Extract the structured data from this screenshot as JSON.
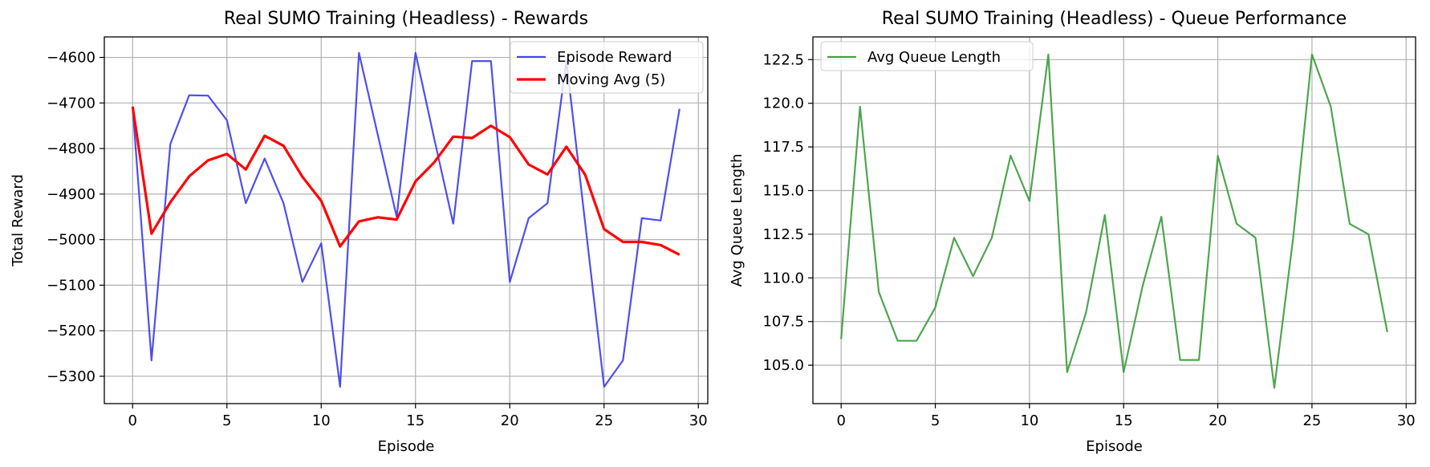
{
  "chart_data": [
    {
      "type": "line",
      "title": "Real SUMO Training (Headless) - Rewards",
      "xlabel": "Episode",
      "ylabel": "Total Reward",
      "xlim": [
        -1.5,
        30.5
      ],
      "ylim": [
        -5360,
        -4555
      ],
      "xticks": [
        0,
        5,
        10,
        15,
        20,
        25,
        30
      ],
      "yticks": [
        -5300,
        -5200,
        -5100,
        -5000,
        -4900,
        -4800,
        -4700,
        -4600
      ],
      "ytick_labels": [
        "−5300",
        "−5200",
        "−5100",
        "−5000",
        "−4900",
        "−4800",
        "−4700",
        "−4600"
      ],
      "grid": true,
      "legend_position": "top-right",
      "x": [
        0,
        1,
        2,
        3,
        4,
        5,
        6,
        7,
        8,
        9,
        10,
        11,
        12,
        13,
        14,
        15,
        16,
        17,
        18,
        19,
        20,
        21,
        22,
        23,
        24,
        25,
        26,
        27,
        28,
        29
      ],
      "series": [
        {
          "name": "Episode Reward",
          "color": "#4444ee",
          "line_width": "thin",
          "values": [
            -4710,
            -5265,
            -4790,
            -4683,
            -4684,
            -4738,
            -4920,
            -4822,
            -4920,
            -5093,
            -5008,
            -5323,
            -4590,
            -4770,
            -4950,
            -4590,
            -4780,
            -4965,
            -4608,
            -4608,
            -5093,
            -4953,
            -4920,
            -4607,
            -4965,
            -5323,
            -5265,
            -4953,
            -4958,
            -4713
          ]
        },
        {
          "name": "Moving Avg (5)",
          "color": "#ff0000",
          "line_width": "thick",
          "x": [
            0,
            1,
            2,
            3,
            4,
            5,
            6,
            7,
            8,
            9,
            10,
            11,
            12,
            13,
            14,
            15,
            16,
            17,
            18,
            19,
            20,
            21,
            22,
            23,
            24,
            25,
            26,
            27,
            28,
            29
          ],
          "values": [
            -4708,
            -4987,
            -4918,
            -4861,
            -4826,
            -4812,
            -4846,
            -4772,
            -4794,
            -4862,
            -4915,
            -5015,
            -4960,
            -4951,
            -4956,
            -4872,
            -4830,
            -4774,
            -4777,
            -4750,
            -4775,
            -4835,
            -4857,
            -4796,
            -4858,
            -4977,
            -5005,
            -5005,
            -5012,
            -5033
          ]
        }
      ]
    },
    {
      "type": "line",
      "title": "Real SUMO Training (Headless) - Queue Performance",
      "xlabel": "Episode",
      "ylabel": "Avg Queue Length",
      "xlim": [
        -1.5,
        30.5
      ],
      "ylim": [
        102.8,
        123.8
      ],
      "xticks": [
        0,
        5,
        10,
        15,
        20,
        25,
        30
      ],
      "yticks": [
        105.0,
        107.5,
        110.0,
        112.5,
        115.0,
        117.5,
        120.0,
        122.5
      ],
      "ytick_labels": [
        "105.0",
        "107.5",
        "110.0",
        "112.5",
        "115.0",
        "117.5",
        "120.0",
        "122.5"
      ],
      "grid": true,
      "legend_position": "top-left",
      "x": [
        0,
        1,
        2,
        3,
        4,
        5,
        6,
        7,
        8,
        9,
        10,
        11,
        12,
        13,
        14,
        15,
        16,
        17,
        18,
        19,
        20,
        21,
        22,
        23,
        24,
        25,
        26,
        27,
        28,
        29
      ],
      "series": [
        {
          "name": "Avg Queue Length",
          "color": "#44a044",
          "line_width": "thin",
          "values": [
            106.5,
            119.8,
            109.2,
            106.4,
            106.4,
            108.3,
            112.3,
            110.1,
            112.3,
            117.0,
            114.4,
            122.8,
            104.6,
            108.0,
            113.6,
            104.6,
            109.5,
            113.5,
            105.3,
            105.3,
            117.0,
            113.1,
            112.3,
            103.7,
            112.3,
            122.8,
            119.8,
            113.1,
            112.5,
            106.9
          ]
        }
      ]
    }
  ]
}
